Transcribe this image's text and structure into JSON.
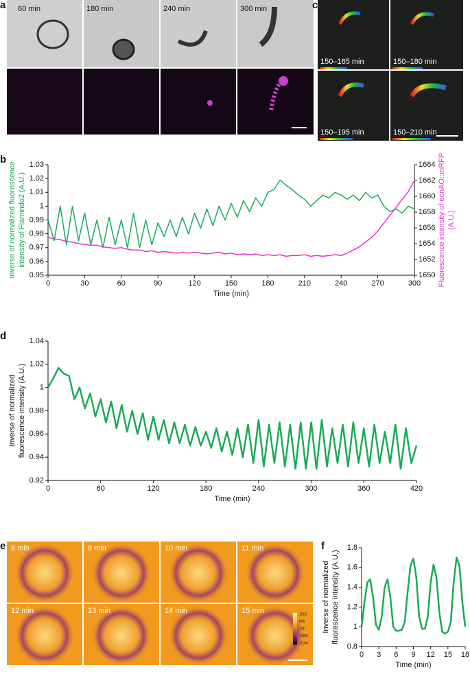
{
  "panel_labels": [
    "a",
    "b",
    "c",
    "d",
    "e",
    "f"
  ],
  "panel_a": {
    "times": [
      "60 min",
      "180 min",
      "240 min",
      "300 min"
    ]
  },
  "panel_c": {
    "times": [
      "150–165 min",
      "150–180 min",
      "150–195 min",
      "150–210 min"
    ]
  },
  "panel_e": {
    "times": [
      "8 min",
      "9 min",
      "10 min",
      "11 min",
      "12 min",
      "13 min",
      "14 min",
      "15 min"
    ],
    "colorbar_labels": [
      "1510",
      "895",
      "-297",
      "-1000",
      "-2104"
    ]
  },
  "chart_data": [
    {
      "type": "line",
      "xlabel": "Time (min)",
      "ylabel": [
        "Inverse of normalized fluorescence",
        "intensity of Flamindo2 (A.U.)"
      ],
      "ylabel_color": "#1aaa55",
      "y2label": [
        "Fluorescence intensity of ecnAO::mRFP",
        "(A.U.)"
      ],
      "y2label_color": "#e632c8",
      "x": [
        0,
        5,
        10,
        15,
        20,
        25,
        30,
        35,
        40,
        45,
        50,
        55,
        60,
        65,
        70,
        75,
        80,
        85,
        90,
        95,
        100,
        105,
        110,
        115,
        120,
        125,
        130,
        135,
        140,
        145,
        150,
        155,
        160,
        165,
        170,
        175,
        180,
        185,
        190,
        195,
        200,
        205,
        210,
        215,
        220,
        225,
        230,
        235,
        240,
        245,
        250,
        255,
        260,
        265,
        270,
        275,
        280,
        285,
        290,
        295,
        300
      ],
      "xlim": [
        0,
        300
      ],
      "xticks": [
        0,
        30,
        60,
        90,
        120,
        150,
        180,
        210,
        240,
        270,
        300
      ],
      "ylim": [
        0.95,
        1.03
      ],
      "yticks": [
        0.95,
        0.96,
        0.97,
        0.98,
        0.99,
        1,
        1.01,
        1.02,
        1.03
      ],
      "y2lim": [
        1650,
        1664
      ],
      "y2ticks": [
        1650,
        1652,
        1654,
        1656,
        1658,
        1660,
        1662,
        1664
      ],
      "series": [
        {
          "color": "#1aaa55",
          "values": [
            0.99,
            0.975,
            1.0,
            0.972,
            1.0,
            0.975,
            0.995,
            0.972,
            0.99,
            0.97,
            0.992,
            0.972,
            0.99,
            0.97,
            0.995,
            0.97,
            0.99,
            0.972,
            0.988,
            0.978,
            0.99,
            0.978,
            0.992,
            0.98,
            0.995,
            0.984,
            0.998,
            0.986,
            1.0,
            0.99,
            1.002,
            0.992,
            1.004,
            0.996,
            1.006,
            1.0,
            1.01,
            1.012,
            1.019,
            1.015,
            1.012,
            1.008,
            1.005,
            1.0,
            1.004,
            1.008,
            1.006,
            1.01,
            1.008,
            1.005,
            1.008,
            1.004,
            1.01,
            1.006,
            1.008,
            1.0,
            0.996,
            0.998,
            0.995,
            1.0,
            0.998
          ]
        },
        {
          "color": "#e632c8",
          "axis": "y2",
          "values": [
            1654.8,
            1654.6,
            1654.5,
            1654.3,
            1654.2,
            1654.0,
            1653.9,
            1653.8,
            1653.8,
            1653.6,
            1653.5,
            1653.4,
            1653.5,
            1653.3,
            1653.2,
            1653.2,
            1653.0,
            1653.1,
            1652.9,
            1653.0,
            1652.9,
            1652.8,
            1652.9,
            1652.8,
            1652.9,
            1652.8,
            1652.7,
            1652.8,
            1652.9,
            1652.7,
            1652.8,
            1652.6,
            1652.7,
            1652.6,
            1652.7,
            1652.5,
            1652.6,
            1652.5,
            1652.6,
            1652.4,
            1652.5,
            1652.5,
            1652.6,
            1652.4,
            1652.5,
            1652.4,
            1652.5,
            1652.6,
            1652.5,
            1652.8,
            1653.2,
            1653.6,
            1654.2,
            1654.8,
            1655.6,
            1656.6,
            1657.6,
            1658.6,
            1659.6,
            1660.6,
            1662.0
          ]
        }
      ]
    },
    {
      "type": "line",
      "xlabel": "Time (min)",
      "ylabel": [
        "Inverse of normalized",
        "fluorescence intensity (A.U.)"
      ],
      "x": [
        0,
        6,
        12,
        18,
        24,
        30,
        36,
        42,
        48,
        54,
        60,
        66,
        72,
        78,
        84,
        90,
        96,
        102,
        108,
        114,
        120,
        126,
        132,
        138,
        144,
        150,
        156,
        162,
        168,
        174,
        180,
        186,
        192,
        198,
        204,
        210,
        216,
        222,
        228,
        234,
        240,
        246,
        252,
        258,
        264,
        270,
        276,
        282,
        288,
        294,
        300,
        306,
        312,
        318,
        324,
        330,
        336,
        342,
        348,
        354,
        360,
        366,
        372,
        378,
        384,
        390,
        396,
        402,
        408,
        414,
        420
      ],
      "xlim": [
        0,
        420
      ],
      "xticks": [
        0,
        60,
        120,
        180,
        240,
        300,
        360,
        420
      ],
      "ylim": [
        0.92,
        1.04
      ],
      "yticks": [
        0.92,
        0.94,
        0.96,
        0.98,
        1,
        1.02,
        1.04
      ],
      "series": [
        {
          "color": "#1aaa55",
          "values": [
            1.0,
            1.008,
            1.017,
            1.012,
            1.01,
            0.99,
            1.0,
            0.982,
            0.995,
            0.975,
            0.99,
            0.97,
            0.988,
            0.965,
            0.985,
            0.962,
            0.98,
            0.96,
            0.978,
            0.955,
            0.975,
            0.955,
            0.972,
            0.952,
            0.97,
            0.952,
            0.968,
            0.95,
            0.966,
            0.95,
            0.962,
            0.948,
            0.965,
            0.945,
            0.962,
            0.942,
            0.965,
            0.94,
            0.968,
            0.935,
            0.972,
            0.932,
            0.968,
            0.935,
            0.97,
            0.932,
            0.968,
            0.93,
            0.97,
            0.93,
            0.97,
            0.93,
            0.972,
            0.932,
            0.965,
            0.935,
            0.968,
            0.932,
            0.97,
            0.935,
            0.965,
            0.932,
            0.968,
            0.935,
            0.962,
            0.935,
            0.968,
            0.93,
            0.965,
            0.935,
            0.95
          ]
        }
      ]
    },
    {
      "type": "line",
      "xlabel": "Time (min)",
      "ylabel": [
        "Inverse of normalized",
        "fluorescence intensity (A.U.)"
      ],
      "x": [
        0,
        0.5,
        1,
        1.5,
        2,
        2.5,
        3,
        3.5,
        4,
        4.5,
        5,
        5.5,
        6,
        6.5,
        7,
        7.5,
        8,
        8.5,
        9,
        9.5,
        10,
        10.5,
        11,
        11.5,
        12,
        12.5,
        13,
        13.5,
        14,
        14.5,
        15,
        15.5,
        16,
        16.5,
        17,
        17.5,
        18
      ],
      "xlim": [
        0,
        18
      ],
      "xticks": [
        0,
        3,
        6,
        9,
        12,
        15,
        18
      ],
      "ylim": [
        0.8,
        1.8
      ],
      "yticks": [
        0.8,
        1,
        1.2,
        1.4,
        1.6,
        1.8
      ],
      "series": [
        {
          "color": "#1aaa55",
          "values": [
            1.0,
            1.25,
            1.45,
            1.48,
            1.3,
            1.02,
            0.97,
            1.1,
            1.4,
            1.48,
            1.3,
            1.0,
            0.96,
            0.96,
            0.97,
            1.05,
            1.35,
            1.62,
            1.69,
            1.5,
            1.1,
            0.98,
            0.98,
            1.1,
            1.45,
            1.63,
            1.5,
            1.15,
            0.95,
            0.93,
            0.95,
            1.05,
            1.45,
            1.7,
            1.62,
            1.25,
            1.0
          ]
        }
      ]
    }
  ]
}
